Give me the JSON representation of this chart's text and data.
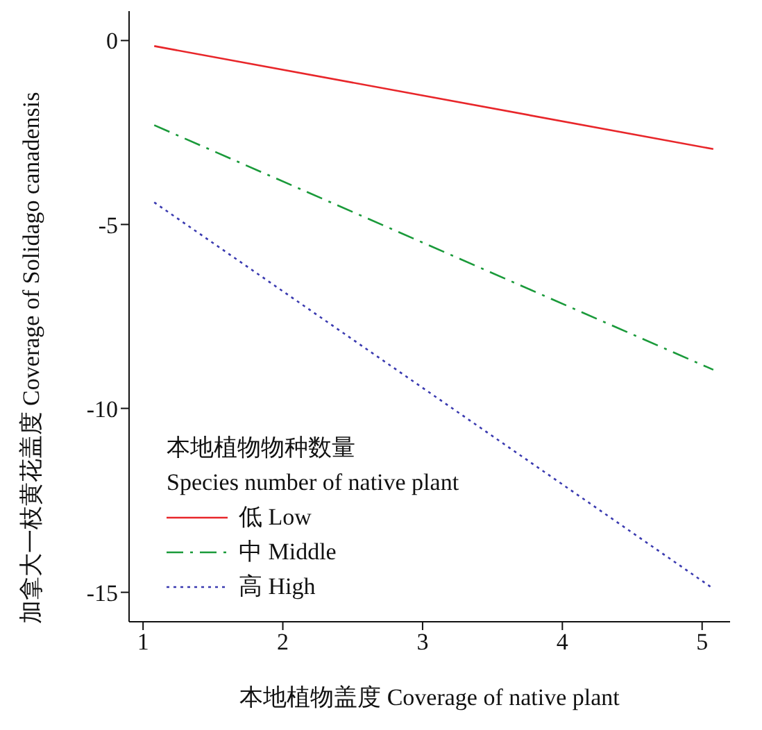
{
  "chart_data": {
    "type": "line",
    "xlabel": "本地植物盖度 Coverage of native plant",
    "ylabel": "加拿大一枝黄花盖度 Coverage of Solidago canadensis",
    "legend_title": "本地植物物种数量\nSpecies number of native plant",
    "x": [
      1.08,
      5.08
    ],
    "series": [
      {
        "name": "低 Low",
        "color": "#e8262a",
        "values": [
          -0.15,
          -2.95
        ],
        "line_style": "solid"
      },
      {
        "name": "中 Middle",
        "color": "#1a9a3a",
        "values": [
          -2.3,
          -8.95
        ],
        "line_style": "dashed"
      },
      {
        "name": "高 High",
        "color": "#3a3ab0",
        "values": [
          -4.4,
          -14.9
        ],
        "line_style": "dotted"
      }
    ],
    "xlim": [
      0.9,
      5.2
    ],
    "xticks": [
      1,
      2,
      3,
      4,
      5
    ],
    "ylim": [
      -15.8,
      0.8
    ],
    "yticks": [
      0,
      -5,
      -10,
      -15
    ],
    "grid": false,
    "legend": "bottom left",
    "marker": "none"
  }
}
